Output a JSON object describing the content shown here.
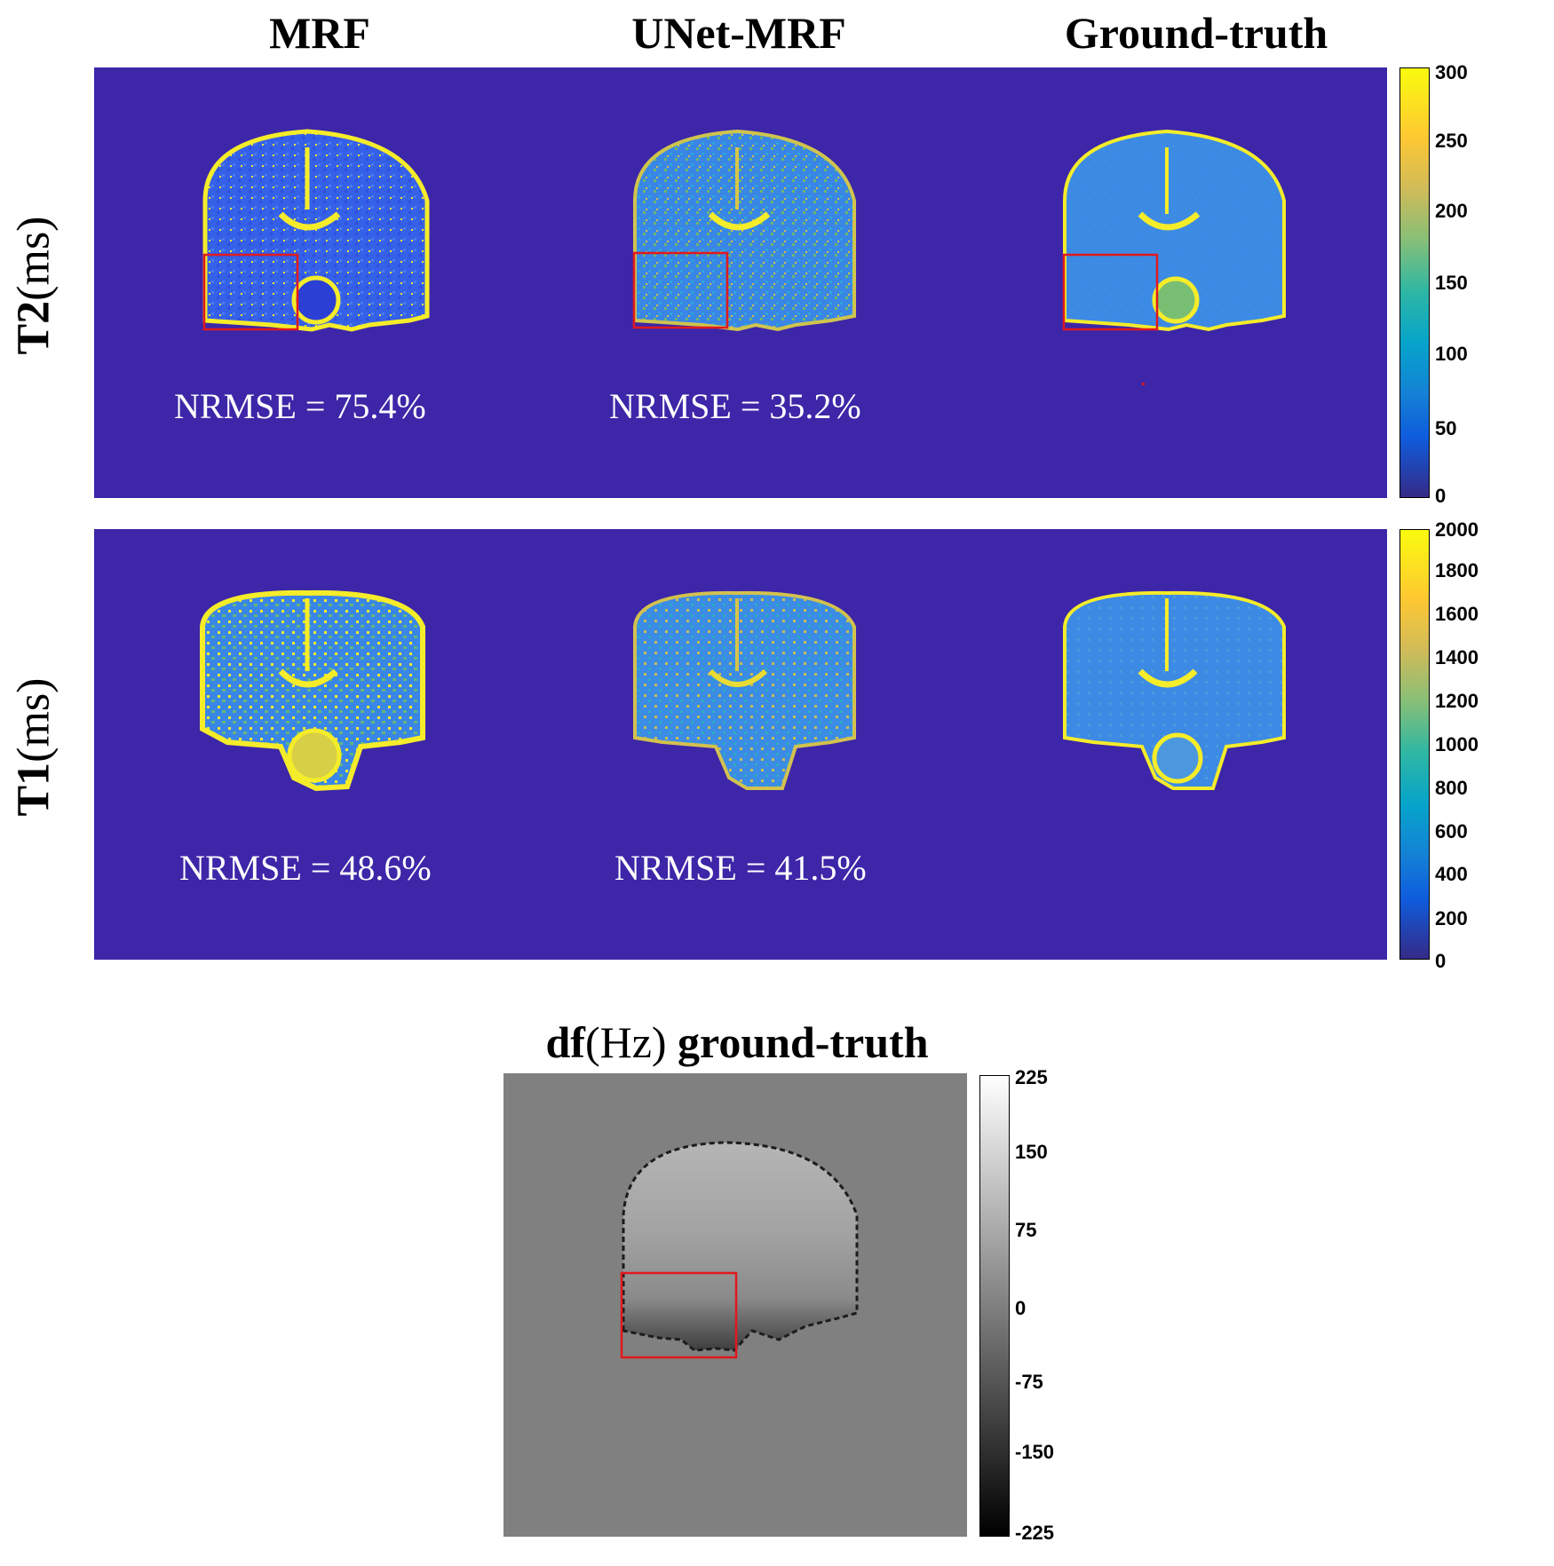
{
  "columns": {
    "mrf": "MRF",
    "unet": "UNet-MRF",
    "gt": "Ground-truth"
  },
  "rows": {
    "t2": {
      "bold": "T2",
      "unit": "(ms)"
    },
    "t1": {
      "bold": "T1",
      "unit": "(ms)"
    }
  },
  "t2_metrics": {
    "mrf": "NRMSE = 75.4%",
    "unet": "NRMSE = 35.2%"
  },
  "t1_metrics": {
    "mrf": "NRMSE = 48.6%",
    "unet": "NRMSE = 41.5%"
  },
  "t2_colorbar": {
    "ticks": [
      "300",
      "250",
      "200",
      "150",
      "100",
      "50",
      "0"
    ],
    "colormap": "parula"
  },
  "t1_colorbar": {
    "ticks": [
      "2000",
      "1800",
      "1600",
      "1400",
      "1200",
      "1000",
      "800",
      "600",
      "400",
      "200",
      "0"
    ],
    "colormap": "parula"
  },
  "df": {
    "title_bold_prefix": "df",
    "title_unit": "(Hz)",
    "title_bold_suffix": " ground-truth",
    "ticks": [
      "225",
      "150",
      "75",
      "0",
      "-75",
      "-150",
      "-225"
    ],
    "colormap": "gray"
  },
  "colors": {
    "background_blue": "#3d26a8",
    "roi_box": "#e0191d",
    "df_background": "#808080"
  }
}
